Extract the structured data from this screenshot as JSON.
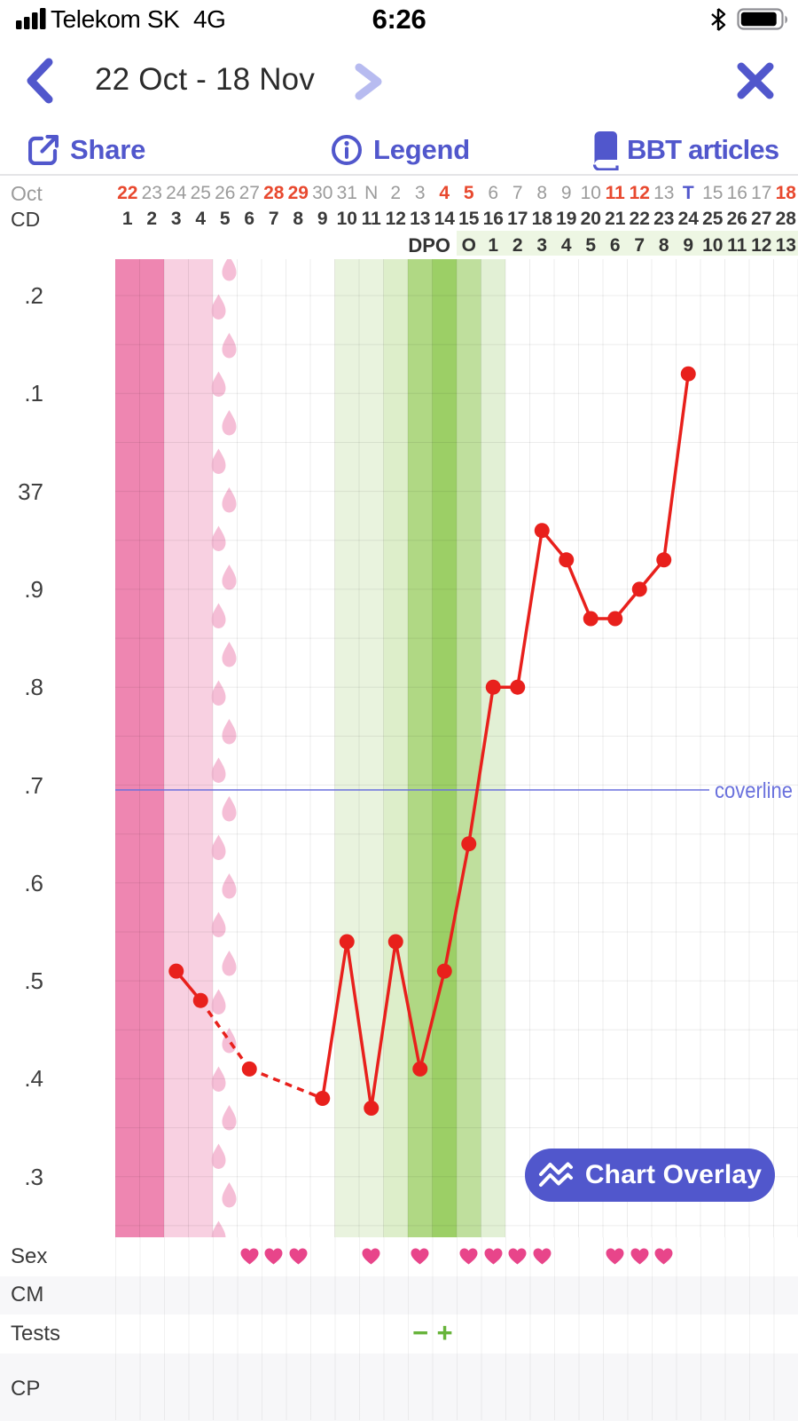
{
  "status_bar": {
    "carrier": "Telekom SK",
    "network": "4G",
    "time": "6:26",
    "battery_fill_ratio": 0.92,
    "icons": [
      "signal-bars-icon",
      "bluetooth-icon",
      "battery-icon"
    ]
  },
  "nav": {
    "title": "22 Oct - 18 Nov",
    "back_icon": "chevron-left-icon",
    "next_icon": "chevron-right-icon",
    "close_icon": "close-icon"
  },
  "toolbar": {
    "share": {
      "label": "Share",
      "icon": "share-icon"
    },
    "legend": {
      "label": "Legend",
      "icon": "info-icon"
    },
    "articles": {
      "label": "BBT articles",
      "icon": "book-icon"
    }
  },
  "header": {
    "month_label": "Oct",
    "cd_label": "CD",
    "dpo_label": "DPO",
    "dates": [
      {
        "label": "22",
        "type": "weekend"
      },
      {
        "label": "23",
        "type": "normal"
      },
      {
        "label": "24",
        "type": "normal"
      },
      {
        "label": "25",
        "type": "normal"
      },
      {
        "label": "26",
        "type": "normal"
      },
      {
        "label": "27",
        "type": "normal"
      },
      {
        "label": "28",
        "type": "weekend"
      },
      {
        "label": "29",
        "type": "weekend"
      },
      {
        "label": "30",
        "type": "normal"
      },
      {
        "label": "31",
        "type": "normal"
      },
      {
        "label": "N",
        "type": "normal"
      },
      {
        "label": "2",
        "type": "normal"
      },
      {
        "label": "3",
        "type": "normal"
      },
      {
        "label": "4",
        "type": "weekend"
      },
      {
        "label": "5",
        "type": "weekend"
      },
      {
        "label": "6",
        "type": "normal"
      },
      {
        "label": "7",
        "type": "normal"
      },
      {
        "label": "8",
        "type": "normal"
      },
      {
        "label": "9",
        "type": "normal"
      },
      {
        "label": "10",
        "type": "normal"
      },
      {
        "label": "11",
        "type": "weekend"
      },
      {
        "label": "12",
        "type": "weekend"
      },
      {
        "label": "13",
        "type": "normal"
      },
      {
        "label": "T",
        "type": "today"
      },
      {
        "label": "15",
        "type": "normal"
      },
      {
        "label": "16",
        "type": "normal"
      },
      {
        "label": "17",
        "type": "normal"
      },
      {
        "label": "18",
        "type": "weekend"
      }
    ],
    "cd_numbers": [
      "1",
      "2",
      "3",
      "4",
      "5",
      "6",
      "7",
      "8",
      "9",
      "10",
      "11",
      "12",
      "13",
      "14",
      "15",
      "16",
      "17",
      "18",
      "19",
      "20",
      "21",
      "22",
      "23",
      "24",
      "25",
      "26",
      "27",
      "28"
    ],
    "dpo": {
      "start_cd": 15,
      "values": [
        "O",
        "1",
        "2",
        "3",
        "4",
        "5",
        "6",
        "7",
        "8",
        "9",
        "10",
        "11",
        "12",
        "13"
      ]
    }
  },
  "chart_data": {
    "type": "line",
    "x_unit": "cycle day",
    "y_unit": "temperature °C",
    "ylim": [
      36.24,
      37.24
    ],
    "y_ticks": [
      {
        "value": 37.2,
        "label": ".2"
      },
      {
        "value": 37.1,
        "label": ".1"
      },
      {
        "value": 37.0,
        "label": "37"
      },
      {
        "value": 36.9,
        "label": ".9"
      },
      {
        "value": 36.8,
        "label": ".8"
      },
      {
        "value": 36.7,
        "label": ".7"
      },
      {
        "value": 36.6,
        "label": ".6"
      },
      {
        "value": 36.5,
        "label": ".5"
      },
      {
        "value": 36.4,
        "label": ".4"
      },
      {
        "value": 36.3,
        "label": ".3"
      }
    ],
    "grid_step": 0.05,
    "points": [
      {
        "cd": 3,
        "temp": 36.51
      },
      {
        "cd": 4,
        "temp": 36.48
      },
      {
        "cd": 6,
        "temp": 36.41
      },
      {
        "cd": 9,
        "temp": 36.38
      },
      {
        "cd": 10,
        "temp": 36.54
      },
      {
        "cd": 11,
        "temp": 36.37
      },
      {
        "cd": 12,
        "temp": 36.54
      },
      {
        "cd": 13,
        "temp": 36.41
      },
      {
        "cd": 14,
        "temp": 36.51
      },
      {
        "cd": 15,
        "temp": 36.64
      },
      {
        "cd": 16,
        "temp": 36.8
      },
      {
        "cd": 17,
        "temp": 36.8
      },
      {
        "cd": 18,
        "temp": 36.96
      },
      {
        "cd": 19,
        "temp": 36.93
      },
      {
        "cd": 20,
        "temp": 36.87
      },
      {
        "cd": 21,
        "temp": 36.87
      },
      {
        "cd": 22,
        "temp": 36.9
      },
      {
        "cd": 23,
        "temp": 36.93
      },
      {
        "cd": 24,
        "temp": 37.12
      }
    ],
    "dashed_segments": [
      [
        4,
        6
      ],
      [
        6,
        9
      ]
    ],
    "coverline": {
      "value": 36.695,
      "label": "coverline"
    },
    "cycle_bands": {
      "menses_heavy_days": [
        1,
        2
      ],
      "menses_light_days": [
        3,
        4
      ],
      "spotting_day": 5,
      "fertile": [
        {
          "day": 10,
          "color": "#e9f3de"
        },
        {
          "day": 11,
          "color": "#e9f3de"
        },
        {
          "day": 12,
          "color": "#ddeeca"
        },
        {
          "day": 13,
          "color": "#b0d884"
        },
        {
          "day": 14,
          "color": "#9ccf66"
        },
        {
          "day": 15,
          "color": "#bfdf9d"
        },
        {
          "day": 16,
          "color": "#e2f0d5"
        }
      ]
    }
  },
  "rows": {
    "sex": {
      "label": "Sex",
      "heart_days": [
        6,
        7,
        8,
        11,
        13,
        15,
        16,
        17,
        18,
        21,
        22,
        23
      ]
    },
    "cm": {
      "label": "CM"
    },
    "tests": {
      "label": "Tests",
      "entries": [
        {
          "day": 13,
          "symbol": "−",
          "result": "negative"
        },
        {
          "day": 14,
          "symbol": "+",
          "result": "positive"
        }
      ]
    },
    "cp": {
      "label": "CP"
    }
  },
  "overlay_button": {
    "label": "Chart Overlay",
    "icon": "chart-overlay-icon"
  },
  "colors": {
    "accent": "#5157cc",
    "accent_disabled": "#b7bbf0",
    "weekend_red": "#e8492f",
    "today_blue": "#5157cc",
    "date_gray": "#9b9b9b",
    "text_dark": "#3a3a3a",
    "temp_line": "#e8201c",
    "coverline": "#6a71dd",
    "heart_pink": "#e8458a",
    "test_green": "#68b43b",
    "menses_heavy": "#ee86b1",
    "menses_light": "#f8d0e1",
    "spotting": "#f5bed6",
    "dpo_bg": "#edf6e3",
    "row_alt_bg": "#f7f7f9",
    "grid": "rgba(0,0,0,0.075)"
  }
}
